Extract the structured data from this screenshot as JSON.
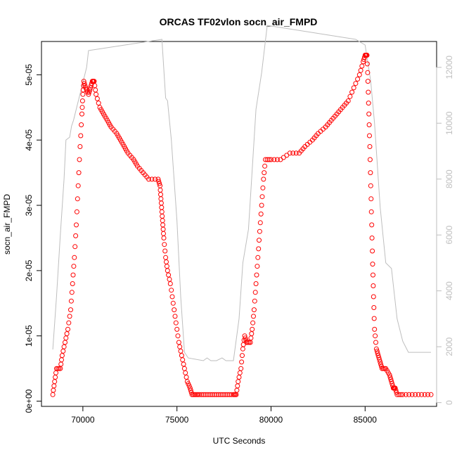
{
  "chart_data": {
    "type": "scatter",
    "title": "ORCAS TF02vlon socn_air_FMPD",
    "xlabel": "UTC Seconds",
    "ylabel": "socn_air_FMPD",
    "xlim": [
      67800,
      88800
    ],
    "ylim": [
      -8e-07,
      5.51e-05
    ],
    "y2lim": [
      -135,
      12925
    ],
    "xticks": [
      "70000",
      "75000",
      "80000",
      "85000"
    ],
    "yticks": [
      "0e+00",
      "1e-05",
      "2e-05",
      "3e-05",
      "4e-05",
      "5e-05"
    ],
    "y2ticks": [
      "0",
      "2000",
      "4000",
      "6000",
      "8000",
      "10000",
      "12000"
    ],
    "grid": false,
    "legend": "none",
    "colors": {
      "series": "#ff0000",
      "secondary": "#bebebe",
      "axis": "#000000"
    },
    "series": [
      {
        "marker": "open-circle",
        "axis": "left",
        "points": [
          [
            68400,
            1e-06
          ],
          [
            68500,
            3e-06
          ],
          [
            68600,
            5e-06
          ],
          [
            68800,
            5e-06
          ],
          [
            68900,
            7e-06
          ],
          [
            69050,
            9e-06
          ],
          [
            69200,
            1.1e-05
          ],
          [
            69350,
            1.4e-05
          ],
          [
            69450,
            1.8e-05
          ],
          [
            69550,
            2.2e-05
          ],
          [
            69650,
            2.7e-05
          ],
          [
            69750,
            3.3e-05
          ],
          [
            69850,
            3.9e-05
          ],
          [
            69950,
            4.4e-05
          ],
          [
            70000,
            4.7e-05
          ],
          [
            70050,
            4.9e-05
          ],
          [
            70150,
            4.8e-05
          ],
          [
            70300,
            4.7e-05
          ],
          [
            70400,
            4.8e-05
          ],
          [
            70500,
            4.9e-05
          ],
          [
            70600,
            4.9e-05
          ],
          [
            70700,
            4.7e-05
          ],
          [
            70900,
            4.5e-05
          ],
          [
            71100,
            4.4e-05
          ],
          [
            71300,
            4.3e-05
          ],
          [
            71500,
            4.2e-05
          ],
          [
            71800,
            4.1e-05
          ],
          [
            72000,
            4e-05
          ],
          [
            72200,
            3.9e-05
          ],
          [
            72400,
            3.8e-05
          ],
          [
            72700,
            3.7e-05
          ],
          [
            72900,
            3.6e-05
          ],
          [
            73200,
            3.5e-05
          ],
          [
            73500,
            3.4e-05
          ],
          [
            74000,
            3.4e-05
          ],
          [
            74100,
            3.3e-05
          ],
          [
            74150,
            3.1e-05
          ],
          [
            74200,
            2.9e-05
          ],
          [
            74250,
            2.7e-05
          ],
          [
            74300,
            2.5e-05
          ],
          [
            74400,
            2.2e-05
          ],
          [
            74500,
            2e-05
          ],
          [
            74650,
            1.8e-05
          ],
          [
            74800,
            1.5e-05
          ],
          [
            74950,
            1.2e-05
          ],
          [
            75100,
            9e-06
          ],
          [
            75250,
            7e-06
          ],
          [
            75400,
            5e-06
          ],
          [
            75550,
            3e-06
          ],
          [
            75700,
            2e-06
          ],
          [
            75800,
            1e-06
          ],
          [
            76000,
            1e-06
          ],
          [
            76200,
            1e-06
          ],
          [
            76500,
            1e-06
          ],
          [
            76800,
            1e-06
          ],
          [
            77100,
            1e-06
          ],
          [
            77400,
            1e-06
          ],
          [
            77700,
            1e-06
          ],
          [
            78000,
            1e-06
          ],
          [
            78150,
            1e-06
          ],
          [
            78250,
            3e-06
          ],
          [
            78400,
            5e-06
          ],
          [
            78500,
            8e-06
          ],
          [
            78600,
            1e-05
          ],
          [
            78700,
            9e-06
          ],
          [
            78900,
            9e-06
          ],
          [
            79000,
            1.1e-05
          ],
          [
            79100,
            1.4e-05
          ],
          [
            79200,
            1.8e-05
          ],
          [
            79300,
            2.2e-05
          ],
          [
            79400,
            2.6e-05
          ],
          [
            79500,
            3e-05
          ],
          [
            79600,
            3.4e-05
          ],
          [
            79700,
            3.7e-05
          ],
          [
            80000,
            3.7e-05
          ],
          [
            80500,
            3.7e-05
          ],
          [
            81000,
            3.8e-05
          ],
          [
            81500,
            3.8e-05
          ],
          [
            81800,
            3.9e-05
          ],
          [
            82200,
            4e-05
          ],
          [
            82500,
            4.1e-05
          ],
          [
            82900,
            4.2e-05
          ],
          [
            83200,
            4.3e-05
          ],
          [
            83500,
            4.4e-05
          ],
          [
            83800,
            4.5e-05
          ],
          [
            84100,
            4.6e-05
          ],
          [
            84400,
            4.8e-05
          ],
          [
            84700,
            5e-05
          ],
          [
            84900,
            5.2e-05
          ],
          [
            85000,
            5.3e-05
          ],
          [
            85100,
            5.3e-05
          ],
          [
            85150,
            4.9e-05
          ],
          [
            85200,
            4.4e-05
          ],
          [
            85250,
            3.9e-05
          ],
          [
            85300,
            3.3e-05
          ],
          [
            85350,
            2.7e-05
          ],
          [
            85400,
            2.1e-05
          ],
          [
            85450,
            1.6e-05
          ],
          [
            85500,
            1.1e-05
          ],
          [
            85600,
            8e-06
          ],
          [
            85700,
            7e-06
          ],
          [
            85800,
            6e-06
          ],
          [
            85900,
            5e-06
          ],
          [
            86100,
            5e-06
          ],
          [
            86300,
            4e-06
          ],
          [
            86400,
            3e-06
          ],
          [
            86500,
            2e-06
          ],
          [
            86600,
            2e-06
          ],
          [
            86700,
            1e-06
          ],
          [
            87000,
            1e-06
          ],
          [
            87500,
            1e-06
          ],
          [
            88000,
            1e-06
          ],
          [
            88500,
            1e-06
          ]
        ]
      },
      {
        "marker": "line",
        "axis": "right",
        "points": [
          [
            68400,
            1900
          ],
          [
            68600,
            3800
          ],
          [
            68800,
            6000
          ],
          [
            69000,
            8000
          ],
          [
            69100,
            9400
          ],
          [
            69300,
            9500
          ],
          [
            69400,
            9900
          ],
          [
            69500,
            10100
          ],
          [
            70200,
            12000
          ],
          [
            70300,
            12600
          ],
          [
            74200,
            13000
          ],
          [
            74400,
            10900
          ],
          [
            74500,
            10800
          ],
          [
            74700,
            9400
          ],
          [
            75000,
            6500
          ],
          [
            75200,
            3800
          ],
          [
            75400,
            1800
          ],
          [
            75600,
            1600
          ],
          [
            76400,
            1500
          ],
          [
            76600,
            1600
          ],
          [
            76800,
            1500
          ],
          [
            77100,
            1500
          ],
          [
            77400,
            1600
          ],
          [
            77600,
            1500
          ],
          [
            78000,
            1500
          ],
          [
            78300,
            3000
          ],
          [
            78500,
            5000
          ],
          [
            78800,
            6200
          ],
          [
            79200,
            10500
          ],
          [
            79500,
            11800
          ],
          [
            79800,
            13500
          ],
          [
            84500,
            13000
          ],
          [
            85000,
            12800
          ],
          [
            85300,
            11500
          ],
          [
            85500,
            10000
          ],
          [
            85800,
            7000
          ],
          [
            86100,
            5000
          ],
          [
            86400,
            4800
          ],
          [
            86700,
            3000
          ],
          [
            87000,
            2200
          ],
          [
            87300,
            1800
          ],
          [
            88500,
            1800
          ]
        ]
      }
    ]
  }
}
